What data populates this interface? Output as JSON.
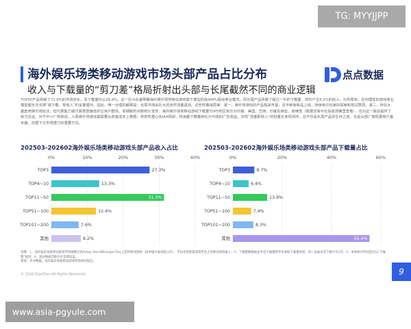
{
  "header": {
    "tag": "TG: MYYJJPP",
    "title": "海外娱乐场类移动游戏市场头部产品占比分布",
    "logo": "点点数据",
    "subtitle": "收入与下载量的“剪刀差”格局折射出头部与长尾截然不同的商业逻辑"
  },
  "body": {
    "paragraph": "TOP50产品贡献了71.9%的市场流水，而下载量仅占28.9%。这一巨大反差明确海外娱乐场类移动游戏属于典型的高ARPU驱动商业模式，而长尾产品贡献了超过一半的下载量，却仅产生8.2%的收入。众所周知，任何理性的游戏商业模型都无法支撑“高下载、零收入”的采量循环。因此，唯一合理的解释是：长尾市场由巨大的自然流量驱动。这些样看得再审：其一，娱乐场游戏的产品极其丰富，且不断有新品上线，持续吸引玩家的探索和尝试意愿；其二，存在大量套壳娱乐场玩法，但付费能力或付费意愿偏低的泛用户群体。而细致的点数统计发现：海外娱乐场类移动游戏下载量TOP5地区依次为印度、美国、巴西、印度尼西亚、菲律宾（数据详情可在投放洞察里查看），也为这一假设提供了有力佐证。对于中小厂商来说，入局娱乐场游戏最需要从获客成本上着眼，将变现重心向IAA倾斜，将海量下载量转化为可观的广告收益，实现“流量即收入”的轻量化变现闭环。这不仅是长尾产品的生存之道，也是头部厂商拓展用户基本盘、挖掘下沉市场潜力的重要方向。"
  },
  "chart_data": [
    {
      "type": "bar",
      "title": "202503-202602海外娱乐场类移动游戏头部产品收入占比",
      "categories": [
        "TOP3",
        "TOP4~10",
        "TOP11~50",
        "TOP51~100",
        "TOP101~200",
        "其他"
      ],
      "values": [
        27.3,
        13.3,
        31.3,
        12.4,
        7.6,
        8.2
      ],
      "value_labels": [
        "27.3%",
        "13.3%",
        "31.3%",
        "12.4%",
        "7.6%",
        "8.2%"
      ],
      "colors": [
        "#3f5fd9",
        "#3ec3cb",
        "#36c95c",
        "#f4c531",
        "#7fb8f1",
        "#c9c3f1"
      ],
      "xlim": [
        0,
        40
      ],
      "xticks": [
        {
          "value": 0,
          "label": "0%"
        },
        {
          "value": 10,
          "label": "10%"
        },
        {
          "value": 20,
          "label": "20%"
        },
        {
          "value": 30,
          "label": "30%"
        },
        {
          "value": 40,
          "label": "40%"
        }
      ],
      "grid": true
    },
    {
      "type": "bar",
      "title": "202503-202602海外娱乐场类移动游戏头部产品下载量占比",
      "categories": [
        "TOP3",
        "TOP4~10",
        "TOP11~50",
        "TOP51~100",
        "TOP101~200",
        "其他"
      ],
      "values": [
        8.7,
        6.4,
        13.9,
        7.4,
        8.3,
        55.4
      ],
      "value_labels": [
        "8.7%",
        "6.4%",
        "13.9%",
        "7.4%",
        "8.3%",
        "55.4%"
      ],
      "colors": [
        "#3f5fd9",
        "#3ec3cb",
        "#36c95c",
        "#f4c531",
        "#7fb8f1",
        "#a996ea"
      ],
      "xlim": [
        0,
        60
      ],
      "xticks": [
        {
          "value": 0,
          "label": "0%"
        },
        {
          "value": 20,
          "label": "20%"
        },
        {
          "value": 40,
          "label": "40%"
        },
        {
          "value": 60,
          "label": "60%"
        }
      ],
      "grid": true
    }
  ],
  "footer": {
    "notes": "注释：1、海外娱乐场类移动游戏市场规模口径为App Store和Google Play上架的移动游戏（除中国大陆地区以外），不包含其他渠道或平台上的移动游戏收入；2、下载量数据由主平台下载量和平台关联下载量构成，同一设备多次下载计为1次；3、本表统计时间区间与“下载量”相同；4、部分数据可能存在合理误差。",
    "source": "来源：点点数据，海外娱乐场类移动游戏市场研究报告。",
    "copyright": "© 2026 DianDian.All Rights Reserved.",
    "page": "9",
    "watermark": "www.asia-pgyule.com"
  }
}
